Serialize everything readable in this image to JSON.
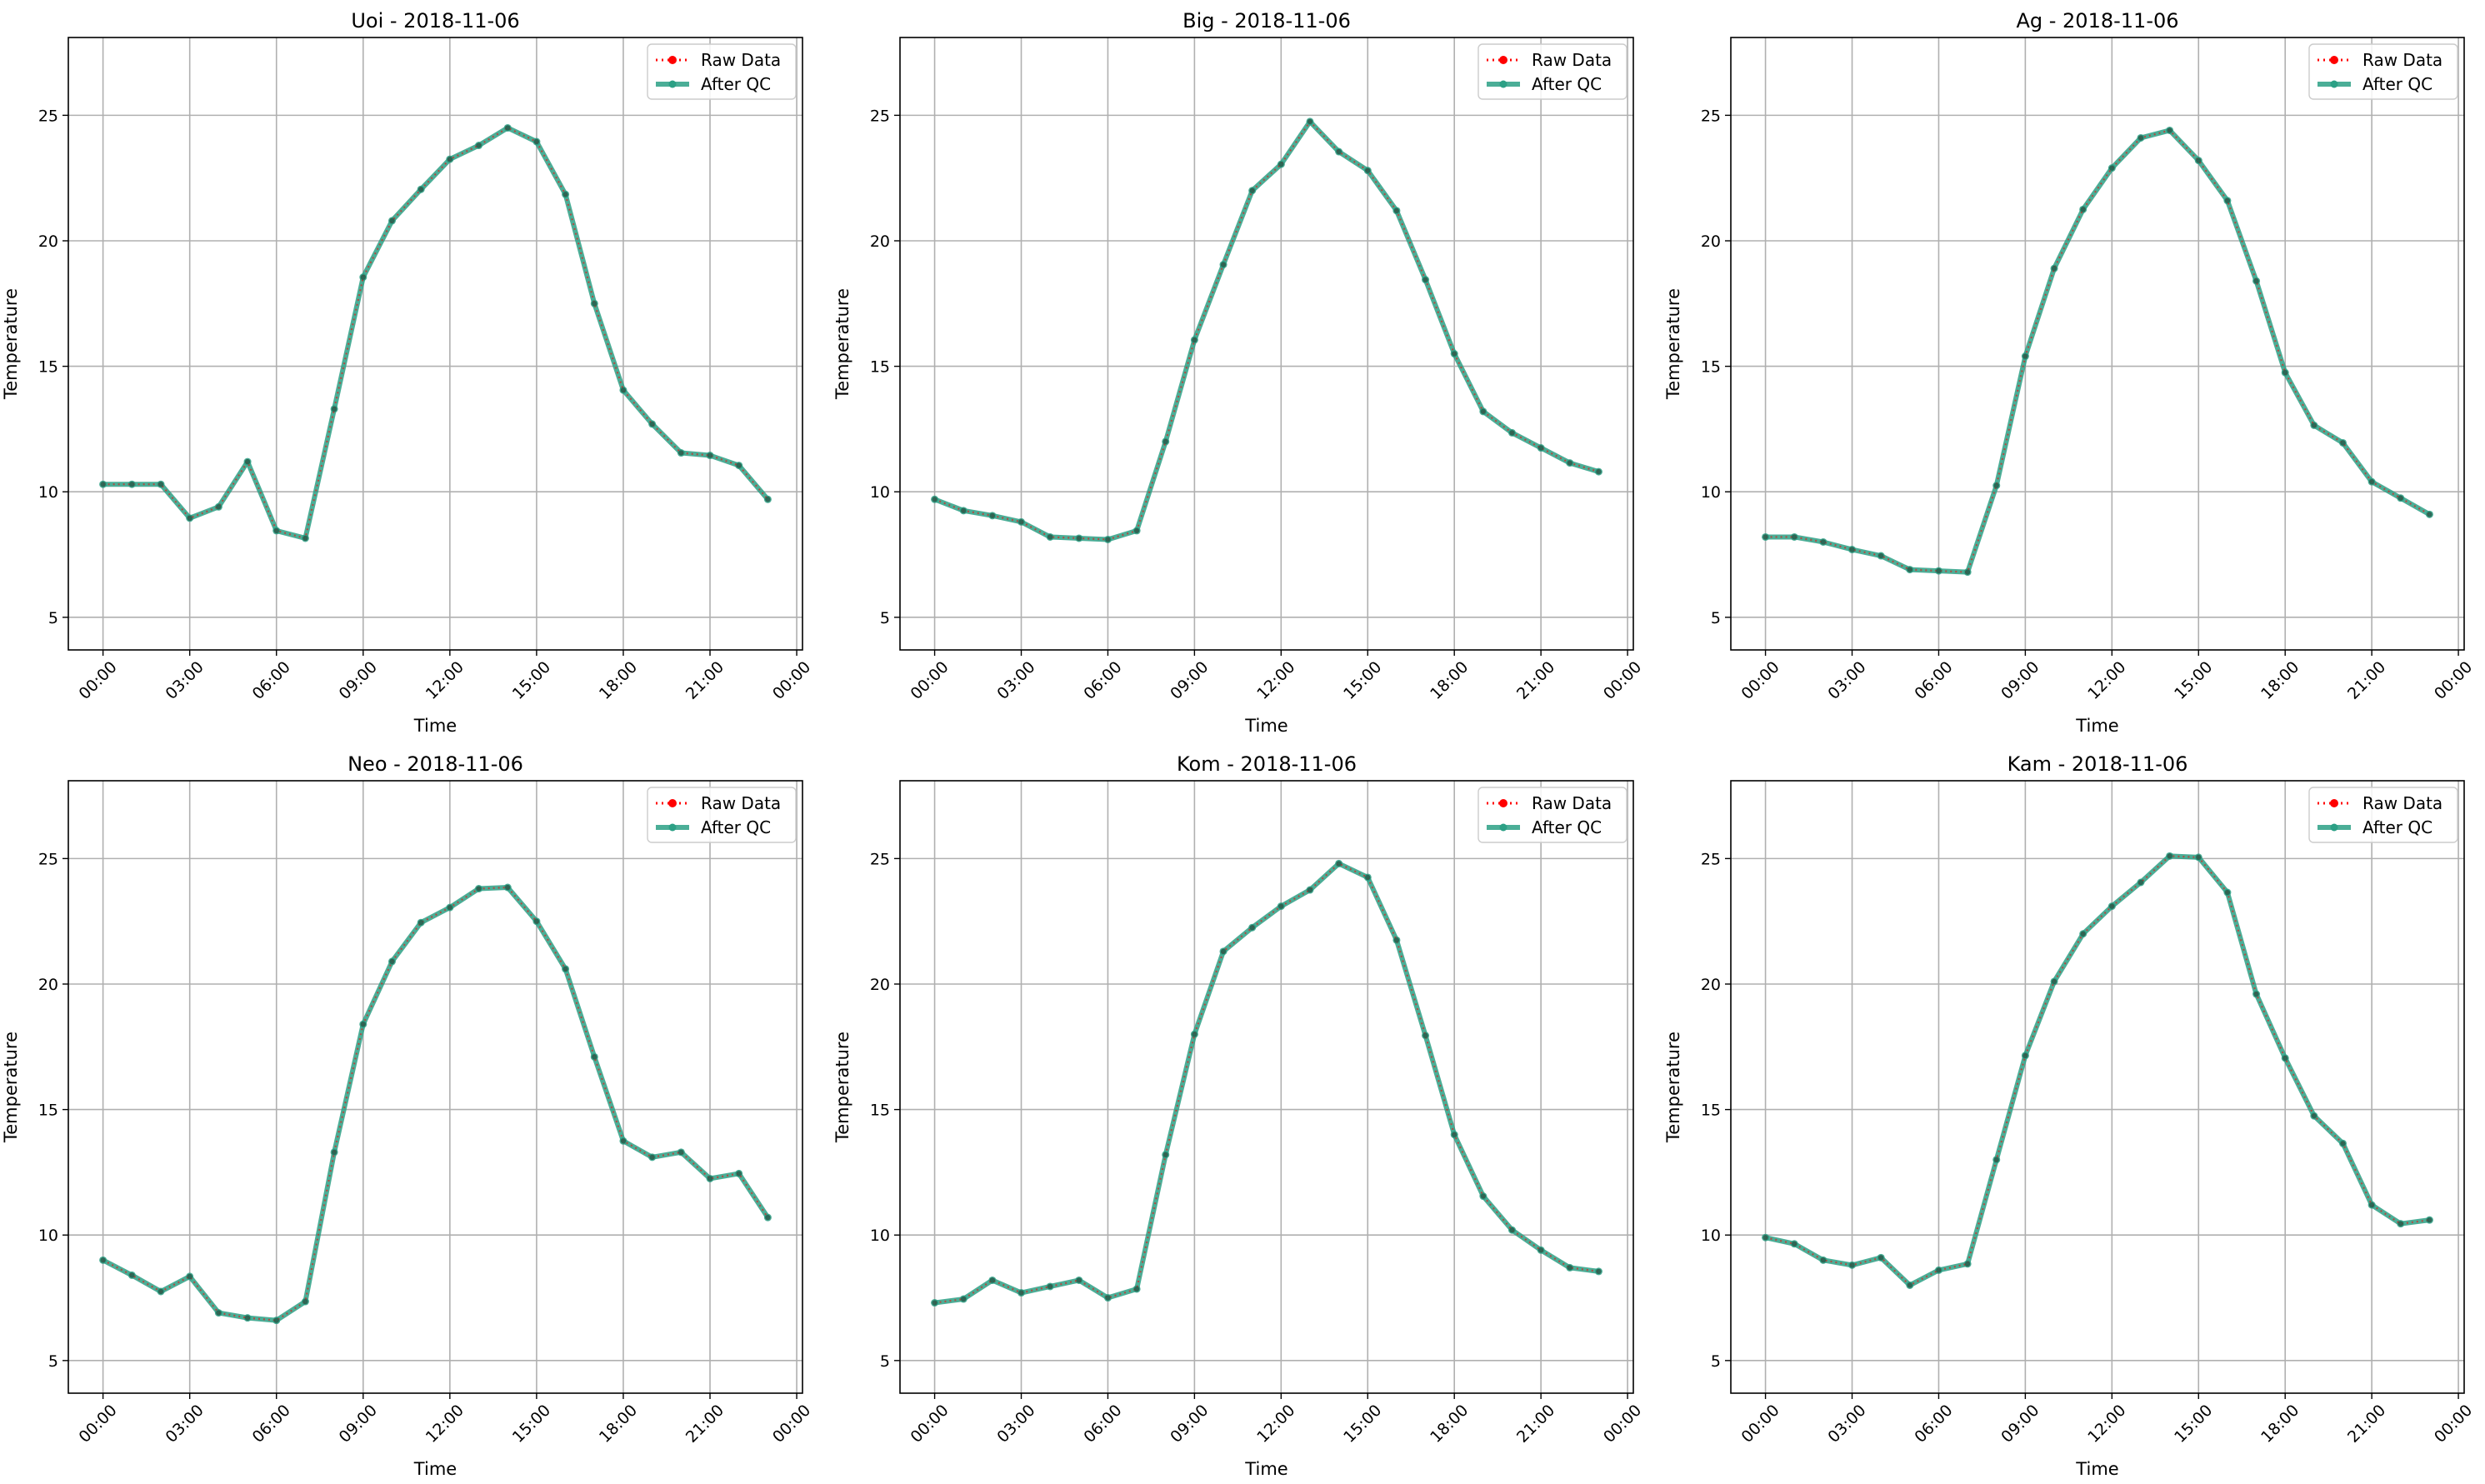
{
  "chart_data": [
    {
      "type": "line",
      "title": "Uoi - 2018-11-06",
      "xlabel": "Time",
      "ylabel": "Temperature",
      "x": [
        "00:00",
        "01:00",
        "02:00",
        "03:00",
        "04:00",
        "05:00",
        "06:00",
        "07:00",
        "08:00",
        "09:00",
        "10:00",
        "11:00",
        "12:00",
        "13:00",
        "14:00",
        "15:00",
        "16:00",
        "17:00",
        "18:00",
        "19:00",
        "20:00",
        "21:00",
        "22:00",
        "23:00"
      ],
      "xticks": [
        "00:00",
        "03:00",
        "06:00",
        "09:00",
        "12:00",
        "15:00",
        "18:00",
        "21:00",
        "00:00"
      ],
      "yticks": [
        5,
        10,
        15,
        20,
        25
      ],
      "ylim": [
        3.7,
        28.1
      ],
      "xlim_hours": [
        -1.2,
        24.2
      ],
      "grid": true,
      "legend_position": "top-right",
      "series": [
        {
          "name": "Raw Data",
          "color": "#ff0000",
          "style": "dotted-markers",
          "values": [
            10.3,
            10.3,
            10.3,
            8.95,
            9.4,
            11.2,
            8.45,
            8.15,
            13.3,
            18.55,
            20.8,
            22.05,
            23.25,
            23.8,
            24.5,
            23.95,
            21.85,
            17.5,
            14.05,
            12.7,
            11.55,
            11.45,
            11.05,
            9.7
          ]
        },
        {
          "name": "After QC",
          "color": "#2ca085",
          "style": "solid-markers",
          "values": [
            10.3,
            10.3,
            10.3,
            8.95,
            9.4,
            11.2,
            8.45,
            8.15,
            13.3,
            18.55,
            20.8,
            22.05,
            23.25,
            23.8,
            24.5,
            23.95,
            21.85,
            17.5,
            14.05,
            12.7,
            11.55,
            11.45,
            11.05,
            9.7
          ]
        }
      ]
    },
    {
      "type": "line",
      "title": "Big - 2018-11-06",
      "xlabel": "Time",
      "ylabel": "Temperature",
      "x": [
        "00:00",
        "01:00",
        "02:00",
        "03:00",
        "04:00",
        "05:00",
        "06:00",
        "07:00",
        "08:00",
        "09:00",
        "10:00",
        "11:00",
        "12:00",
        "13:00",
        "14:00",
        "15:00",
        "16:00",
        "17:00",
        "18:00",
        "19:00",
        "20:00",
        "21:00",
        "22:00",
        "23:00"
      ],
      "xticks": [
        "00:00",
        "03:00",
        "06:00",
        "09:00",
        "12:00",
        "15:00",
        "18:00",
        "21:00",
        "00:00"
      ],
      "yticks": [
        5,
        10,
        15,
        20,
        25
      ],
      "ylim": [
        3.7,
        28.1
      ],
      "xlim_hours": [
        -1.2,
        24.2
      ],
      "grid": true,
      "legend_position": "top-right",
      "series": [
        {
          "name": "Raw Data",
          "color": "#ff0000",
          "style": "dotted-markers",
          "values": [
            9.7,
            9.25,
            9.05,
            8.8,
            8.2,
            8.15,
            8.1,
            8.45,
            12.0,
            16.05,
            19.05,
            22.0,
            23.05,
            24.75,
            23.55,
            22.8,
            21.2,
            18.45,
            15.5,
            13.2,
            12.35,
            11.75,
            11.15,
            10.8
          ]
        },
        {
          "name": "After QC",
          "color": "#2ca085",
          "style": "solid-markers",
          "values": [
            9.7,
            9.25,
            9.05,
            8.8,
            8.2,
            8.15,
            8.1,
            8.45,
            12.0,
            16.05,
            19.05,
            22.0,
            23.05,
            24.75,
            23.55,
            22.8,
            21.2,
            18.45,
            15.5,
            13.2,
            12.35,
            11.75,
            11.15,
            10.8
          ]
        }
      ]
    },
    {
      "type": "line",
      "title": "Ag - 2018-11-06",
      "xlabel": "Time",
      "ylabel": "Temperature",
      "x": [
        "00:00",
        "01:00",
        "02:00",
        "03:00",
        "04:00",
        "05:00",
        "06:00",
        "07:00",
        "08:00",
        "09:00",
        "10:00",
        "11:00",
        "12:00",
        "13:00",
        "14:00",
        "15:00",
        "16:00",
        "17:00",
        "18:00",
        "19:00",
        "20:00",
        "21:00",
        "22:00",
        "23:00"
      ],
      "xticks": [
        "00:00",
        "03:00",
        "06:00",
        "09:00",
        "12:00",
        "15:00",
        "18:00",
        "21:00",
        "00:00"
      ],
      "yticks": [
        5,
        10,
        15,
        20,
        25
      ],
      "ylim": [
        3.7,
        28.1
      ],
      "xlim_hours": [
        -1.2,
        24.2
      ],
      "grid": true,
      "legend_position": "top-right",
      "series": [
        {
          "name": "Raw Data",
          "color": "#ff0000",
          "style": "dotted-markers",
          "values": [
            8.2,
            8.2,
            8.0,
            7.7,
            7.45,
            6.9,
            6.85,
            6.8,
            10.25,
            15.4,
            18.9,
            21.25,
            22.9,
            24.1,
            24.4,
            23.2,
            21.6,
            18.4,
            14.75,
            12.65,
            11.95,
            10.4,
            9.75,
            9.1
          ]
        },
        {
          "name": "After QC",
          "color": "#2ca085",
          "style": "solid-markers",
          "values": [
            8.2,
            8.2,
            8.0,
            7.7,
            7.45,
            6.9,
            6.85,
            6.8,
            10.25,
            15.4,
            18.9,
            21.25,
            22.9,
            24.1,
            24.4,
            23.2,
            21.6,
            18.4,
            14.75,
            12.65,
            11.95,
            10.4,
            9.75,
            9.1
          ]
        }
      ]
    },
    {
      "type": "line",
      "title": "Neo - 2018-11-06",
      "xlabel": "Time",
      "ylabel": "Temperature",
      "x": [
        "00:00",
        "01:00",
        "02:00",
        "03:00",
        "04:00",
        "05:00",
        "06:00",
        "07:00",
        "08:00",
        "09:00",
        "10:00",
        "11:00",
        "12:00",
        "13:00",
        "14:00",
        "15:00",
        "16:00",
        "17:00",
        "18:00",
        "19:00",
        "20:00",
        "21:00",
        "22:00",
        "23:00"
      ],
      "xticks": [
        "00:00",
        "03:00",
        "06:00",
        "09:00",
        "12:00",
        "15:00",
        "18:00",
        "21:00",
        "00:00"
      ],
      "yticks": [
        5,
        10,
        15,
        20,
        25
      ],
      "ylim": [
        3.7,
        28.1
      ],
      "xlim_hours": [
        -1.2,
        24.2
      ],
      "grid": true,
      "legend_position": "top-right",
      "series": [
        {
          "name": "Raw Data",
          "color": "#ff0000",
          "style": "dotted-markers",
          "values": [
            9.0,
            8.4,
            7.75,
            8.35,
            6.9,
            6.7,
            6.6,
            7.35,
            13.3,
            18.4,
            20.9,
            22.45,
            23.05,
            23.8,
            23.85,
            22.5,
            20.6,
            17.1,
            13.75,
            13.1,
            13.3,
            12.25,
            12.45,
            10.7
          ]
        },
        {
          "name": "After QC",
          "color": "#2ca085",
          "style": "solid-markers",
          "values": [
            9.0,
            8.4,
            7.75,
            8.35,
            6.9,
            6.7,
            6.6,
            7.35,
            13.3,
            18.4,
            20.9,
            22.45,
            23.05,
            23.8,
            23.85,
            22.5,
            20.6,
            17.1,
            13.75,
            13.1,
            13.3,
            12.25,
            12.45,
            10.7
          ]
        }
      ]
    },
    {
      "type": "line",
      "title": "Kom - 2018-11-06",
      "xlabel": "Time",
      "ylabel": "Temperature",
      "x": [
        "00:00",
        "01:00",
        "02:00",
        "03:00",
        "04:00",
        "05:00",
        "06:00",
        "07:00",
        "08:00",
        "09:00",
        "10:00",
        "11:00",
        "12:00",
        "13:00",
        "14:00",
        "15:00",
        "16:00",
        "17:00",
        "18:00",
        "19:00",
        "20:00",
        "21:00",
        "22:00",
        "23:00"
      ],
      "xticks": [
        "00:00",
        "03:00",
        "06:00",
        "09:00",
        "12:00",
        "15:00",
        "18:00",
        "21:00",
        "00:00"
      ],
      "yticks": [
        5,
        10,
        15,
        20,
        25
      ],
      "ylim": [
        3.7,
        28.1
      ],
      "xlim_hours": [
        -1.2,
        24.2
      ],
      "grid": true,
      "legend_position": "top-right",
      "series": [
        {
          "name": "Raw Data",
          "color": "#ff0000",
          "style": "dotted-markers",
          "values": [
            7.3,
            7.45,
            8.2,
            7.7,
            7.95,
            8.2,
            7.5,
            7.85,
            13.2,
            18.0,
            21.3,
            22.25,
            23.1,
            23.75,
            24.8,
            24.25,
            21.75,
            17.95,
            14.0,
            11.55,
            10.2,
            9.4,
            8.7,
            8.55
          ]
        },
        {
          "name": "After QC",
          "color": "#2ca085",
          "style": "solid-markers",
          "values": [
            7.3,
            7.45,
            8.2,
            7.7,
            7.95,
            8.2,
            7.5,
            7.85,
            13.2,
            18.0,
            21.3,
            22.25,
            23.1,
            23.75,
            24.8,
            24.25,
            21.75,
            17.95,
            14.0,
            11.55,
            10.2,
            9.4,
            8.7,
            8.55
          ]
        }
      ]
    },
    {
      "type": "line",
      "title": "Kam - 2018-11-06",
      "xlabel": "Time",
      "ylabel": "Temperature",
      "x": [
        "00:00",
        "01:00",
        "02:00",
        "03:00",
        "04:00",
        "05:00",
        "06:00",
        "07:00",
        "08:00",
        "09:00",
        "10:00",
        "11:00",
        "12:00",
        "13:00",
        "14:00",
        "15:00",
        "16:00",
        "17:00",
        "18:00",
        "19:00",
        "20:00",
        "21:00",
        "22:00",
        "23:00"
      ],
      "xticks": [
        "00:00",
        "03:00",
        "06:00",
        "09:00",
        "12:00",
        "15:00",
        "18:00",
        "21:00",
        "00:00"
      ],
      "yticks": [
        5,
        10,
        15,
        20,
        25
      ],
      "ylim": [
        3.7,
        28.1
      ],
      "xlim_hours": [
        -1.2,
        24.2
      ],
      "grid": true,
      "legend_position": "top-right",
      "series": [
        {
          "name": "Raw Data",
          "color": "#ff0000",
          "style": "dotted-markers",
          "values": [
            9.9,
            9.65,
            9.0,
            8.8,
            9.1,
            8.0,
            8.6,
            8.85,
            13.0,
            17.15,
            20.1,
            22.0,
            23.1,
            24.05,
            25.1,
            25.05,
            23.65,
            19.6,
            17.05,
            14.75,
            13.65,
            11.2,
            10.45,
            10.6
          ]
        },
        {
          "name": "After QC",
          "color": "#2ca085",
          "style": "solid-markers",
          "values": [
            9.9,
            9.65,
            9.0,
            8.8,
            9.1,
            8.0,
            8.6,
            8.85,
            13.0,
            17.15,
            20.1,
            22.0,
            23.1,
            24.05,
            25.1,
            25.05,
            23.65,
            19.6,
            17.05,
            14.75,
            13.65,
            11.2,
            10.45,
            10.6
          ]
        }
      ]
    }
  ]
}
